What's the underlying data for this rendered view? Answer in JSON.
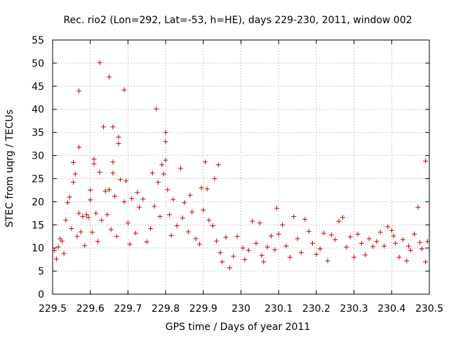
{
  "chart_data": {
    "type": "scatter",
    "title": "Rec. rio2 (Lon=292, Lat=-53, h=HE), days 229-230, 2011, window 002",
    "xlabel": "GPS time / Days of year 2011",
    "ylabel": "STEC from uqrg / TECUs",
    "xlim": [
      229.5,
      230.5
    ],
    "ylim": [
      0,
      55
    ],
    "xticks": [
      229.5,
      229.6,
      229.7,
      229.8,
      229.9,
      230,
      230.1,
      230.2,
      230.3,
      230.4,
      230.5
    ],
    "xtick_labels": [
      "229.5",
      "229.6",
      "229.7",
      "229.8",
      "229.9",
      "230",
      "230.1",
      "230.2",
      "230.3",
      "230.4",
      "230.5"
    ],
    "yticks": [
      0,
      5,
      10,
      15,
      20,
      25,
      30,
      35,
      40,
      45,
      50,
      55
    ],
    "ytick_labels": [
      "0",
      "5",
      "10",
      "15",
      "20",
      "25",
      "30",
      "35",
      "40",
      "45",
      "50",
      "55"
    ],
    "grid": true,
    "marker": "+",
    "color": "#cc0000",
    "series": [
      {
        "name": "STEC",
        "points": [
          [
            229.505,
            9.5
          ],
          [
            229.51,
            7.6
          ],
          [
            229.515,
            10.2
          ],
          [
            229.52,
            12.0
          ],
          [
            229.525,
            11.5
          ],
          [
            229.53,
            8.8
          ],
          [
            229.535,
            16.0
          ],
          [
            229.54,
            19.8
          ],
          [
            229.545,
            21.0
          ],
          [
            229.55,
            14.2
          ],
          [
            229.555,
            28.5
          ],
          [
            229.555,
            24.2
          ],
          [
            229.56,
            26.0
          ],
          [
            229.565,
            12.5
          ],
          [
            229.57,
            44.0
          ],
          [
            229.57,
            31.8
          ],
          [
            229.57,
            17.5
          ],
          [
            229.575,
            13.5
          ],
          [
            229.58,
            16.8
          ],
          [
            229.585,
            10.5
          ],
          [
            229.59,
            17.2
          ],
          [
            229.595,
            16.6
          ],
          [
            229.6,
            22.5
          ],
          [
            229.6,
            20.4
          ],
          [
            229.605,
            13.4
          ],
          [
            229.61,
            29.2
          ],
          [
            229.61,
            28.2
          ],
          [
            229.615,
            17.5
          ],
          [
            229.62,
            11.4
          ],
          [
            229.625,
            50.1
          ],
          [
            229.625,
            26.4
          ],
          [
            229.63,
            16.0
          ],
          [
            229.635,
            36.2
          ],
          [
            229.64,
            22.3
          ],
          [
            229.645,
            17.2
          ],
          [
            229.65,
            47.0
          ],
          [
            229.65,
            22.6
          ],
          [
            229.655,
            14.0
          ],
          [
            229.66,
            36.2
          ],
          [
            229.66,
            28.6
          ],
          [
            229.66,
            26.2
          ],
          [
            229.665,
            21.2
          ],
          [
            229.67,
            12.5
          ],
          [
            229.675,
            34.0
          ],
          [
            229.675,
            32.6
          ],
          [
            229.68,
            24.8
          ],
          [
            229.69,
            44.2
          ],
          [
            229.69,
            20.0
          ],
          [
            229.695,
            24.5
          ],
          [
            229.7,
            15.4
          ],
          [
            229.705,
            10.8
          ],
          [
            229.71,
            20.7
          ],
          [
            229.72,
            13.2
          ],
          [
            229.725,
            22.0
          ],
          [
            229.73,
            18.8
          ],
          [
            229.74,
            20.6
          ],
          [
            229.75,
            11.3
          ],
          [
            229.76,
            14.2
          ],
          [
            229.765,
            26.2
          ],
          [
            229.77,
            19.0
          ],
          [
            229.775,
            40.1
          ],
          [
            229.78,
            24.2
          ],
          [
            229.785,
            16.8
          ],
          [
            229.79,
            28.0
          ],
          [
            229.795,
            26.0
          ],
          [
            229.8,
            35.0
          ],
          [
            229.8,
            33.0
          ],
          [
            229.8,
            29.0
          ],
          [
            229.805,
            22.6
          ],
          [
            229.81,
            17.2
          ],
          [
            229.815,
            12.7
          ],
          [
            229.82,
            20.5
          ],
          [
            229.83,
            14.8
          ],
          [
            229.84,
            27.2
          ],
          [
            229.845,
            16.5
          ],
          [
            229.85,
            19.8
          ],
          [
            229.86,
            13.5
          ],
          [
            229.865,
            21.4
          ],
          [
            229.87,
            17.8
          ],
          [
            229.88,
            12.0
          ],
          [
            229.89,
            10.8
          ],
          [
            229.895,
            23.0
          ],
          [
            229.9,
            18.2
          ],
          [
            229.905,
            28.6
          ],
          [
            229.91,
            22.8
          ],
          [
            229.915,
            16.0
          ],
          [
            229.925,
            14.8
          ],
          [
            229.93,
            25.0
          ],
          [
            229.935,
            11.5
          ],
          [
            229.94,
            28.0
          ],
          [
            229.945,
            9.0
          ],
          [
            229.95,
            7.0
          ],
          [
            229.96,
            12.3
          ],
          [
            229.97,
            5.7
          ],
          [
            229.98,
            8.2
          ],
          [
            229.99,
            12.5
          ],
          [
            230.005,
            10.0
          ],
          [
            230.01,
            7.5
          ],
          [
            230.02,
            9.5
          ],
          [
            230.03,
            15.8
          ],
          [
            230.04,
            11.0
          ],
          [
            230.05,
            15.4
          ],
          [
            230.055,
            8.4
          ],
          [
            230.06,
            7.0
          ],
          [
            230.07,
            10.2
          ],
          [
            230.08,
            12.6
          ],
          [
            230.09,
            9.6
          ],
          [
            230.095,
            18.6
          ],
          [
            230.1,
            13.0
          ],
          [
            230.11,
            15.0
          ],
          [
            230.12,
            10.4
          ],
          [
            230.13,
            8.0
          ],
          [
            230.14,
            16.8
          ],
          [
            230.15,
            12.0
          ],
          [
            230.16,
            9.0
          ],
          [
            230.17,
            16.2
          ],
          [
            230.18,
            13.6
          ],
          [
            230.19,
            11.0
          ],
          [
            230.2,
            8.6
          ],
          [
            230.21,
            9.8
          ],
          [
            230.22,
            13.2
          ],
          [
            230.23,
            7.2
          ],
          [
            230.24,
            12.8
          ],
          [
            230.25,
            11.8
          ],
          [
            230.26,
            15.8
          ],
          [
            230.27,
            16.6
          ],
          [
            230.28,
            10.2
          ],
          [
            230.29,
            12.4
          ],
          [
            230.3,
            8.0
          ],
          [
            230.31,
            13.0
          ],
          [
            230.32,
            11.0
          ],
          [
            230.33,
            8.5
          ],
          [
            230.34,
            12.0
          ],
          [
            230.35,
            10.3
          ],
          [
            230.36,
            11.4
          ],
          [
            230.37,
            13.4
          ],
          [
            230.38,
            10.4
          ],
          [
            230.39,
            14.6
          ],
          [
            230.4,
            13.8
          ],
          [
            230.405,
            12.6
          ],
          [
            230.41,
            11.0
          ],
          [
            230.42,
            8.0
          ],
          [
            230.43,
            11.8
          ],
          [
            230.44,
            7.2
          ],
          [
            230.445,
            10.4
          ],
          [
            230.45,
            9.5
          ],
          [
            230.46,
            13.0
          ],
          [
            230.47,
            18.8
          ],
          [
            230.475,
            11.2
          ],
          [
            230.48,
            9.8
          ],
          [
            230.49,
            28.8
          ],
          [
            230.495,
            11.4
          ],
          [
            230.49,
            7.0
          ]
        ]
      }
    ]
  }
}
